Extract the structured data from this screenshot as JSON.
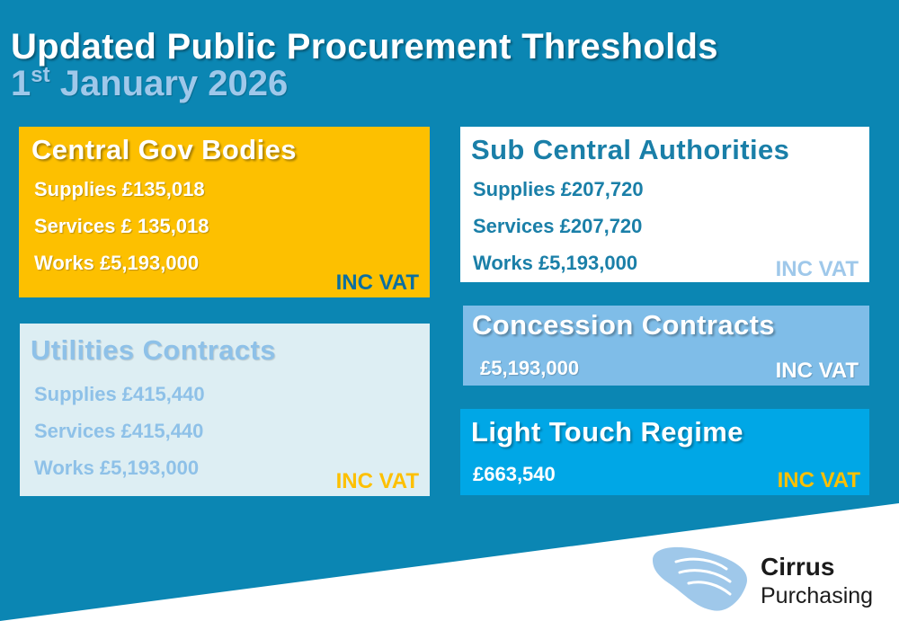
{
  "title": "Updated Public Procurement Thresholds",
  "date": {
    "day": "1",
    "suffix": "st",
    "rest": "January 2026"
  },
  "boxes": {
    "central": {
      "heading": "Central Gov Bodies",
      "lines": [
        "Supplies £135,018",
        "Services £ 135,018",
        "Works £5,193,000"
      ],
      "vat": "INC VAT"
    },
    "subcentral": {
      "heading": "Sub Central Authorities",
      "lines": [
        "Supplies £207,720",
        "Services £207,720",
        "Works £5,193,000"
      ],
      "vat": "INC VAT"
    },
    "utilities": {
      "heading": "Utilities Contracts",
      "lines": [
        "Supplies £415,440",
        "Services £415,440",
        "Works £5,193,000"
      ],
      "vat": "INC VAT"
    },
    "concession": {
      "heading": "Concession Contracts",
      "lines": [
        "£5,193,000"
      ],
      "vat": "INC VAT"
    },
    "lighttouch": {
      "heading": "Light Touch Regime",
      "lines": [
        "£663,540"
      ],
      "vat": "INC VAT"
    }
  },
  "logo": {
    "name": "Cirrus",
    "sub": "Purchasing"
  },
  "colors": {
    "background": "#0b86b3",
    "yellow": "#fdc000",
    "light_blue": "#9fc8ea",
    "bright_blue": "#00a7e6"
  }
}
